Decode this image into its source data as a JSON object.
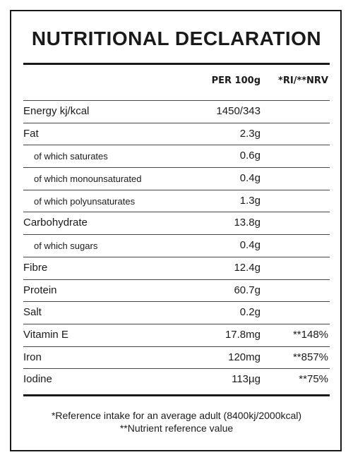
{
  "title": "NUTRITIONAL DECLARATION",
  "header": {
    "per_label": "PER 100g",
    "ri_label": "*RI/**NRV"
  },
  "rows": [
    {
      "name": "Energy kj/kcal",
      "value": "1450/343",
      "ri": ""
    },
    {
      "name": "Fat",
      "value": "2.3g",
      "ri": ""
    },
    {
      "name": "of which saturates",
      "value": "0.6g",
      "ri": ""
    },
    {
      "name": "of which monounsaturated",
      "value": "0.4g",
      "ri": ""
    },
    {
      "name": "of which polyunsaturates",
      "value": "1.3g",
      "ri": ""
    },
    {
      "name": "Carbohydrate",
      "value": "13.8g",
      "ri": ""
    },
    {
      "name": "of which sugars",
      "value": "0.4g",
      "ri": ""
    },
    {
      "name": "Fibre",
      "value": "12.4g",
      "ri": ""
    },
    {
      "name": "Protein",
      "value": "60.7g",
      "ri": ""
    },
    {
      "name": "Salt",
      "value": "0.2g",
      "ri": ""
    },
    {
      "name": "Vitamin E",
      "value": "17.8mg",
      "ri": "**148%"
    },
    {
      "name": "Iron",
      "value": "120mg",
      "ri": "**857%"
    },
    {
      "name": "Iodine",
      "value": "113µg",
      "ri": "**75%"
    }
  ],
  "footnotes": {
    "reference": "*Reference intake for an average adult (8400kj/2000kcal)",
    "nrv": "**Nutrient reference value"
  }
}
